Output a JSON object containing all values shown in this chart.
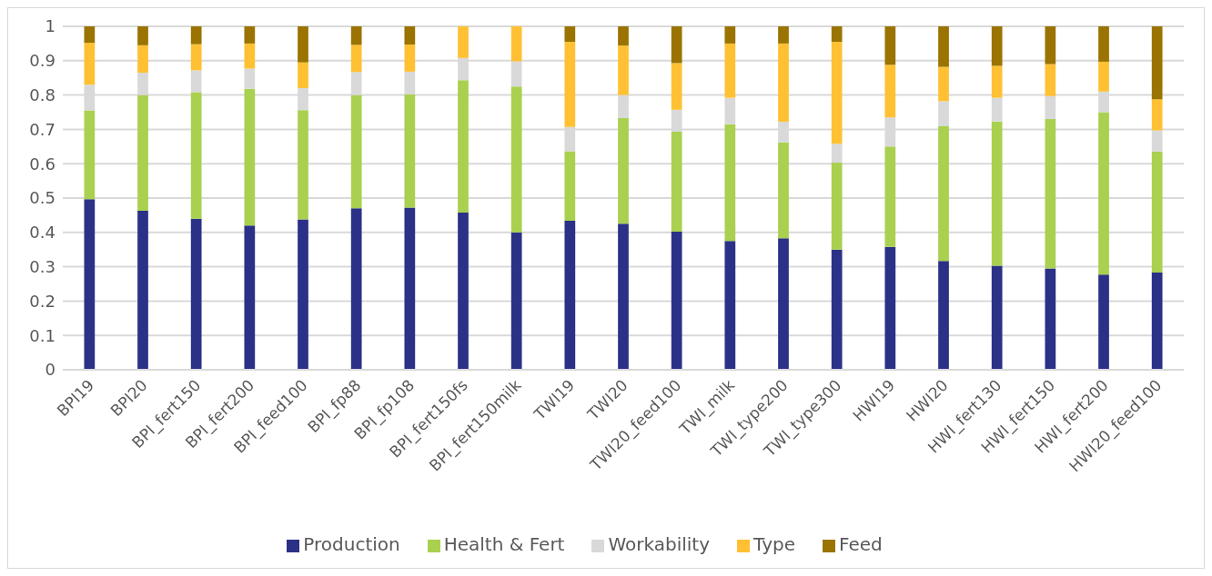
{
  "chart_data": {
    "type": "bar",
    "stacked": true,
    "categories": [
      "BPI19",
      "BPI20",
      "BPI_fert150",
      "BPI_fert200",
      "BPI_feed100",
      "BPI_fp88",
      "BPI_fp108",
      "BPI_fert150fs",
      "BPI_fert150milk",
      "TWI19",
      "TWI20",
      "TWI20_feed100",
      "TWI_milk",
      "TWI_type200",
      "TWI_type300",
      "HWI19",
      "HWI20",
      "HWI_fert130",
      "HWI_fert150",
      "HWI_fert200",
      "HWI20_feed100"
    ],
    "series": [
      {
        "name": "Production",
        "color": "#2b3187",
        "values": [
          0.497,
          0.463,
          0.44,
          0.42,
          0.438,
          0.47,
          0.472,
          0.458,
          0.4,
          0.434,
          0.425,
          0.402,
          0.375,
          0.383,
          0.35,
          0.358,
          0.317,
          0.303,
          0.295,
          0.277,
          0.283
        ]
      },
      {
        "name": "Health & Fert",
        "color": "#a9d04f",
        "values": [
          0.258,
          0.337,
          0.368,
          0.398,
          0.318,
          0.33,
          0.33,
          0.385,
          0.425,
          0.202,
          0.308,
          0.291,
          0.34,
          0.279,
          0.253,
          0.292,
          0.393,
          0.42,
          0.435,
          0.473,
          0.352
        ]
      },
      {
        "name": "Workability",
        "color": "#d9d9d9",
        "values": [
          0.075,
          0.065,
          0.064,
          0.059,
          0.064,
          0.067,
          0.066,
          0.065,
          0.073,
          0.071,
          0.067,
          0.064,
          0.077,
          0.06,
          0.055,
          0.085,
          0.072,
          0.069,
          0.067,
          0.06,
          0.062
        ]
      },
      {
        "name": "Type",
        "color": "#ffc133",
        "values": [
          0.122,
          0.08,
          0.076,
          0.073,
          0.075,
          0.079,
          0.079,
          0.092,
          0.102,
          0.248,
          0.144,
          0.136,
          0.158,
          0.228,
          0.297,
          0.153,
          0.1,
          0.093,
          0.093,
          0.087,
          0.091
        ]
      },
      {
        "name": "Feed",
        "color": "#9a7300",
        "values": [
          0.048,
          0.055,
          0.052,
          0.05,
          0.105,
          0.054,
          0.053,
          0,
          0,
          0.045,
          0.056,
          0.107,
          0.05,
          0.05,
          0.045,
          0.112,
          0.118,
          0.115,
          0.11,
          0.103,
          0.212
        ]
      }
    ],
    "ylim": [
      0,
      1
    ],
    "yticks": [
      0,
      0.1,
      0.2,
      0.3,
      0.4,
      0.5,
      0.6,
      0.7,
      0.8,
      0.9,
      1
    ],
    "grid": "y",
    "legend": "bottom"
  }
}
